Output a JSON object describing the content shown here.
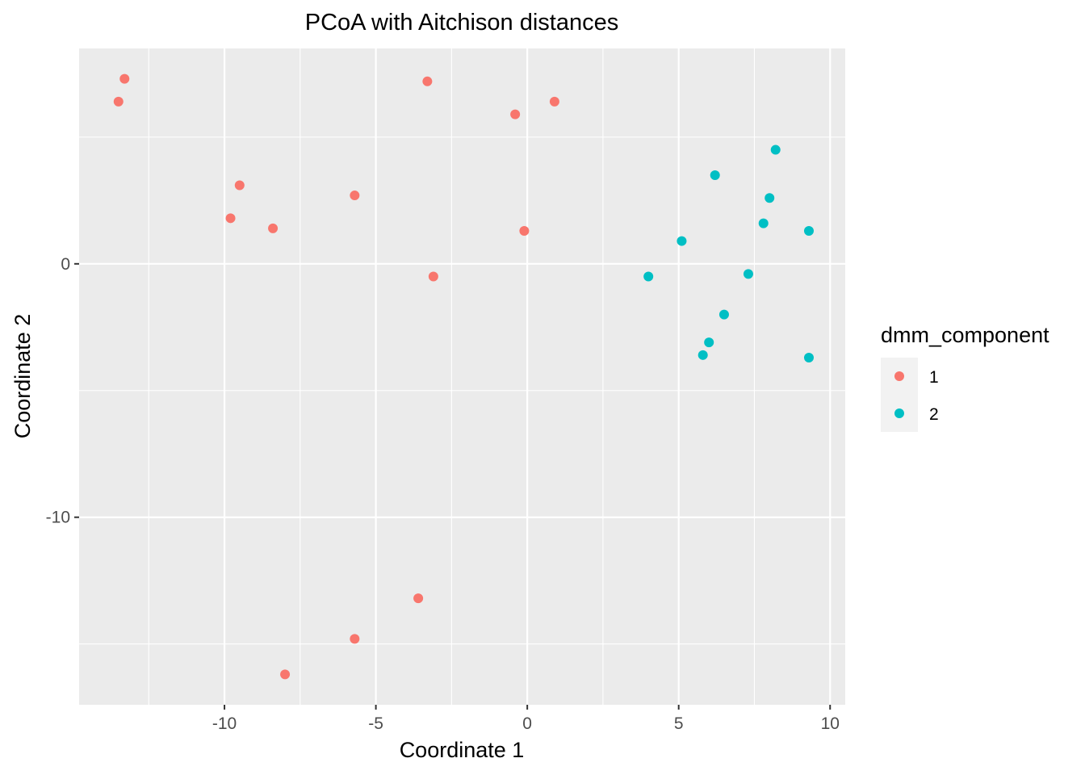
{
  "chart_data": {
    "type": "scatter",
    "title": "PCoA with Aitchison distances",
    "xlabel": "Coordinate 1",
    "ylabel": "Coordinate 2",
    "xlim": [
      -14.8,
      10.5
    ],
    "ylim": [
      -17.4,
      8.5
    ],
    "x_ticks": [
      -10,
      -5,
      0,
      5,
      10
    ],
    "y_ticks": [
      -10,
      0
    ],
    "x_tick_labels": [
      "-10",
      "-5",
      "0",
      "5",
      "10"
    ],
    "y_tick_labels": [
      "-10",
      "0"
    ],
    "grid": true,
    "legend": {
      "title": "dmm_component",
      "position": "right",
      "entries": [
        {
          "label": "1",
          "color": "#F8766D"
        },
        {
          "label": "2",
          "color": "#00BFC4"
        }
      ]
    },
    "series": [
      {
        "name": "1",
        "color": "#F8766D",
        "points": [
          {
            "x": -13.5,
            "y": 6.4
          },
          {
            "x": -13.3,
            "y": 7.3
          },
          {
            "x": -3.3,
            "y": 7.2
          },
          {
            "x": -0.4,
            "y": 5.9
          },
          {
            "x": 0.9,
            "y": 6.4
          },
          {
            "x": -9.5,
            "y": 3.1
          },
          {
            "x": -5.7,
            "y": 2.7
          },
          {
            "x": -9.8,
            "y": 1.8
          },
          {
            "x": -8.4,
            "y": 1.4
          },
          {
            "x": -0.1,
            "y": 1.3
          },
          {
            "x": -3.1,
            "y": -0.5
          },
          {
            "x": -3.6,
            "y": -13.2
          },
          {
            "x": -5.7,
            "y": -14.8
          },
          {
            "x": -8.0,
            "y": -16.2
          }
        ]
      },
      {
        "name": "2",
        "color": "#00BFC4",
        "points": [
          {
            "x": 8.2,
            "y": 4.5
          },
          {
            "x": 6.2,
            "y": 3.5
          },
          {
            "x": 8.0,
            "y": 2.6
          },
          {
            "x": 7.8,
            "y": 1.6
          },
          {
            "x": 9.3,
            "y": 1.3
          },
          {
            "x": 5.1,
            "y": 0.9
          },
          {
            "x": 4.0,
            "y": -0.5
          },
          {
            "x": 7.3,
            "y": -0.4
          },
          {
            "x": 6.5,
            "y": -2.0
          },
          {
            "x": 6.0,
            "y": -3.1
          },
          {
            "x": 5.8,
            "y": -3.6
          },
          {
            "x": 9.3,
            "y": -3.7
          }
        ]
      }
    ]
  }
}
